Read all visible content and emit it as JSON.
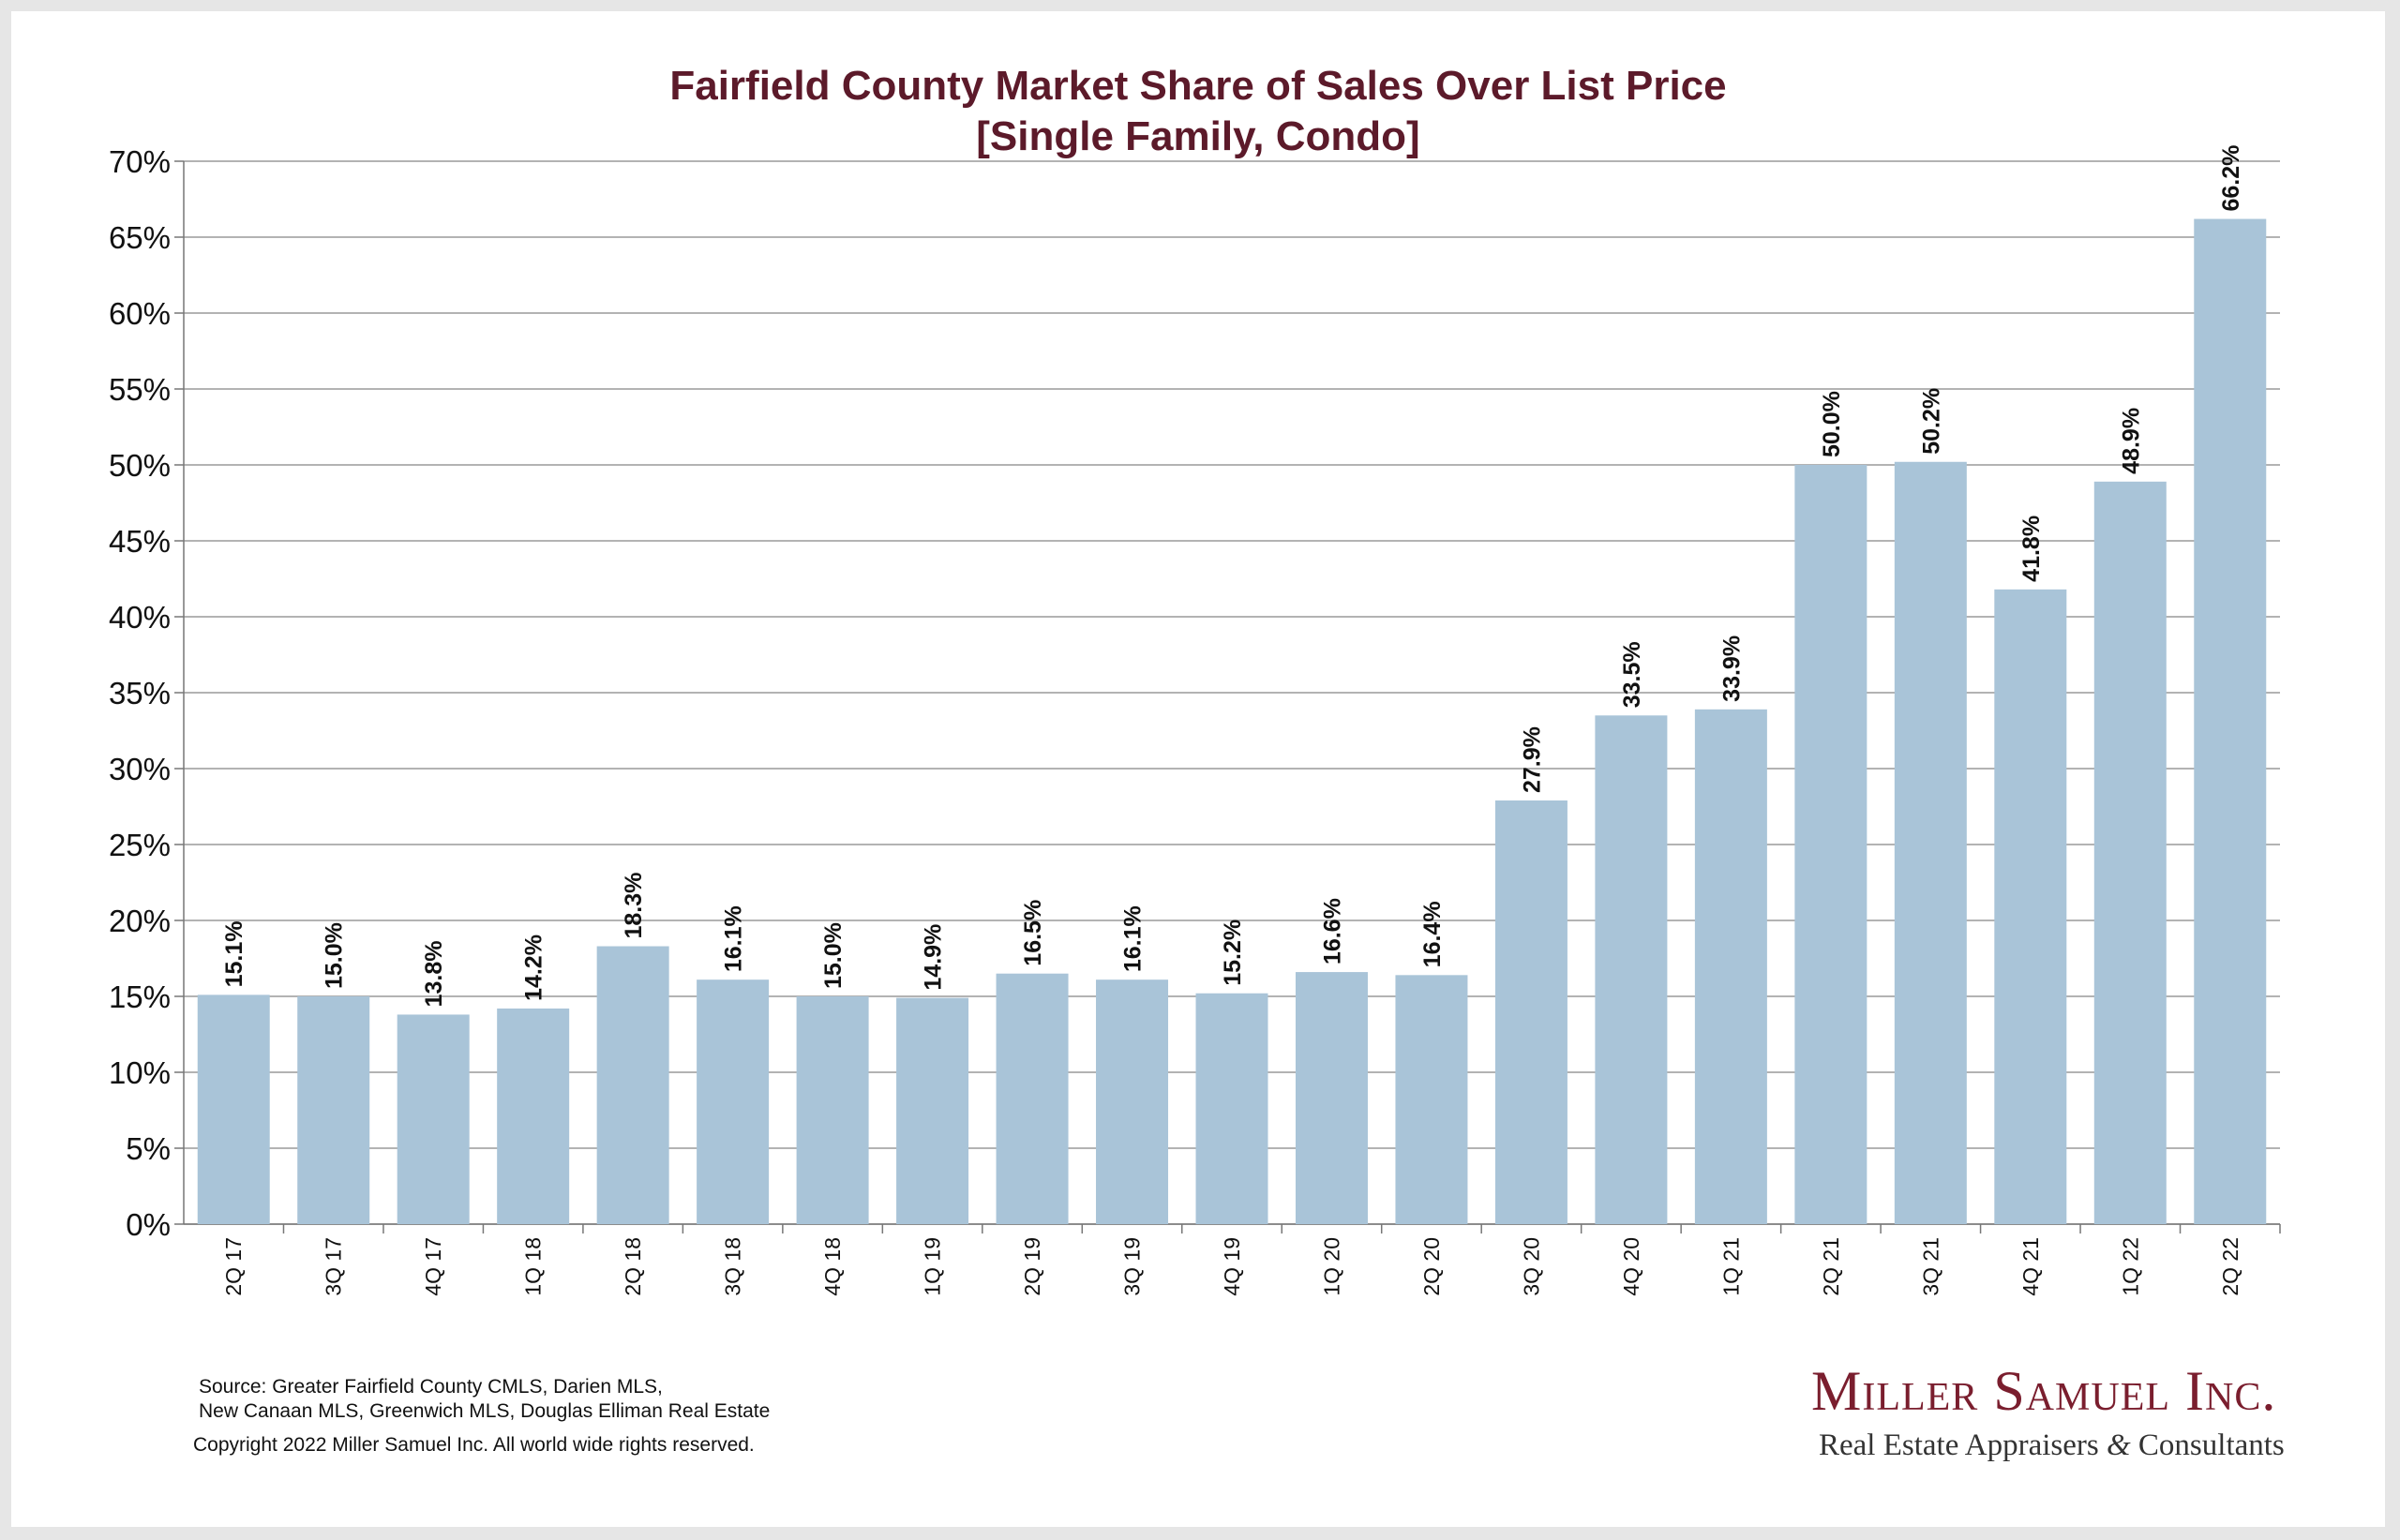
{
  "chart_data": {
    "type": "bar",
    "title": "Fairfield County Market Share of Sales Over List Price",
    "subtitle": "[Single Family, Condo]",
    "categories": [
      "2Q 17",
      "3Q 17",
      "4Q 17",
      "1Q 18",
      "2Q 18",
      "3Q 18",
      "4Q 18",
      "1Q 19",
      "2Q 19",
      "3Q 19",
      "4Q 19",
      "1Q 20",
      "2Q 20",
      "3Q 20",
      "4Q 20",
      "1Q 21",
      "2Q 21",
      "3Q 21",
      "4Q 21",
      "1Q 22",
      "2Q 22"
    ],
    "values": [
      15.1,
      15.0,
      13.8,
      14.2,
      18.3,
      16.1,
      15.0,
      14.9,
      16.5,
      16.1,
      15.2,
      16.6,
      16.4,
      27.9,
      33.5,
      33.9,
      50.0,
      50.2,
      41.8,
      48.9,
      66.2
    ],
    "data_labels": [
      "15.1%",
      "15.0%",
      "13.8%",
      "14.2%",
      "18.3%",
      "16.1%",
      "15.0%",
      "14.9%",
      "16.5%",
      "16.1%",
      "15.2%",
      "16.6%",
      "16.4%",
      "27.9%",
      "33.5%",
      "33.9%",
      "50.0%",
      "50.2%",
      "41.8%",
      "48.9%",
      "66.2%"
    ],
    "ylim": [
      0,
      70
    ],
    "yticks": [
      0,
      5,
      10,
      15,
      20,
      25,
      30,
      35,
      40,
      45,
      50,
      55,
      60,
      65,
      70
    ],
    "ytick_labels": [
      "0%",
      "5%",
      "10%",
      "15%",
      "20%",
      "25%",
      "30%",
      "35%",
      "40%",
      "45%",
      "50%",
      "55%",
      "60%",
      "65%",
      "70%"
    ],
    "xlabel": "",
    "ylabel": "",
    "grid": true,
    "legend": "none",
    "bar_color": "#a9c4d8",
    "grid_color": "#9a9a9a",
    "title_color": "#5c1a2a"
  },
  "footer": {
    "source_line1": "Source:  Greater Fairfield County CMLS, Darien MLS,",
    "source_line2": "New Canaan MLS, Greenwich MLS, Douglas Elliman Real Estate",
    "copyright": "Copyright 2022 Miller Samuel Inc.  All world wide rights reserved."
  },
  "logo": {
    "name": "Miller Samuel Inc.",
    "tagline_part1": "Real Estate Appraisers ",
    "tagline_amp": "&",
    "tagline_part2": " Consultants"
  }
}
